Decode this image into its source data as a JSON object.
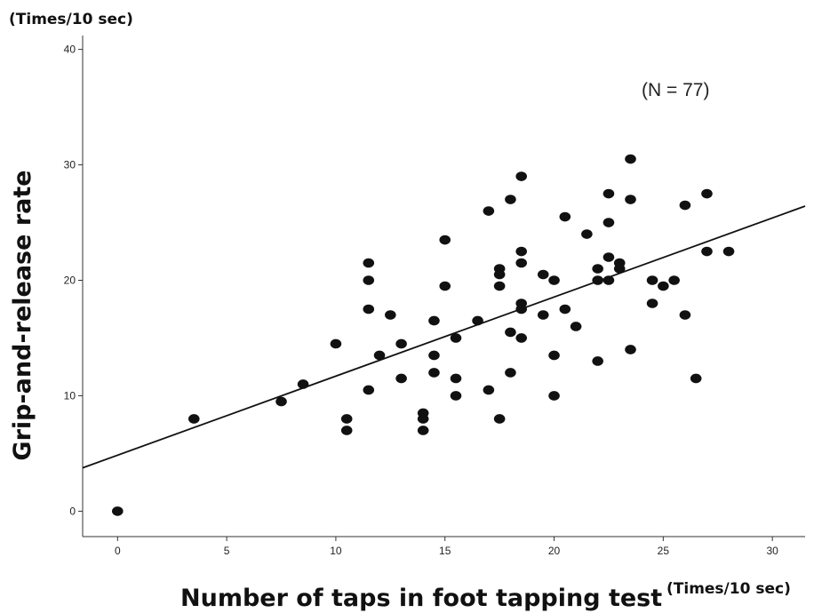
{
  "chart_data": {
    "type": "scatter",
    "xlabel": "Number of taps in foot tapping test",
    "ylabel": "Grip-and-release rate",
    "x_unit": "(Times/10 sec)",
    "y_unit": "(Times/10 sec)",
    "annotation": "(N = 77)",
    "xlim": [
      -1.6,
      31.5
    ],
    "ylim": [
      -2.2,
      41.2
    ],
    "xticks": [
      0,
      5,
      10,
      15,
      20,
      25,
      30
    ],
    "yticks": [
      0,
      10,
      20,
      30,
      40
    ],
    "grid": false,
    "fit_line": {
      "intercept": 4.85,
      "slope": 0.685
    },
    "points": [
      [
        0,
        0
      ],
      [
        3.5,
        8
      ],
      [
        7.5,
        9.5
      ],
      [
        8.5,
        11
      ],
      [
        10,
        14.5
      ],
      [
        10.5,
        8
      ],
      [
        10.5,
        7
      ],
      [
        11.5,
        21.5
      ],
      [
        11.5,
        20
      ],
      [
        11.5,
        17.5
      ],
      [
        11.5,
        10.5
      ],
      [
        12,
        13.5
      ],
      [
        12.5,
        17
      ],
      [
        13,
        14.5
      ],
      [
        13,
        11.5
      ],
      [
        14,
        8.5
      ],
      [
        14,
        8
      ],
      [
        14,
        7
      ],
      [
        14.5,
        16.5
      ],
      [
        14.5,
        13.5
      ],
      [
        14.5,
        12
      ],
      [
        15,
        23.5
      ],
      [
        15,
        19.5
      ],
      [
        15.5,
        15
      ],
      [
        15.5,
        11.5
      ],
      [
        15.5,
        10
      ],
      [
        16.5,
        16.5
      ],
      [
        17,
        26
      ],
      [
        17,
        10.5
      ],
      [
        17.5,
        21
      ],
      [
        17.5,
        20.5
      ],
      [
        17.5,
        19.5
      ],
      [
        17.5,
        8
      ],
      [
        18,
        27
      ],
      [
        18,
        15.5
      ],
      [
        18,
        12
      ],
      [
        18.5,
        29
      ],
      [
        18.5,
        22.5
      ],
      [
        18.5,
        21.5
      ],
      [
        18.5,
        18
      ],
      [
        18.5,
        17.5
      ],
      [
        18.5,
        15
      ],
      [
        19.5,
        20.5
      ],
      [
        19.5,
        17
      ],
      [
        20,
        20
      ],
      [
        20,
        13.5
      ],
      [
        20,
        10
      ],
      [
        20.5,
        25.5
      ],
      [
        20.5,
        17.5
      ],
      [
        21,
        16
      ],
      [
        21.5,
        24
      ],
      [
        22,
        21
      ],
      [
        22,
        20
      ],
      [
        22,
        13
      ],
      [
        22.5,
        27.5
      ],
      [
        22.5,
        25
      ],
      [
        22.5,
        22
      ],
      [
        22.5,
        20
      ],
      [
        23,
        21.5
      ],
      [
        23,
        21
      ],
      [
        23.5,
        30.5
      ],
      [
        23.5,
        27
      ],
      [
        23.5,
        14
      ],
      [
        24.5,
        20
      ],
      [
        24.5,
        18
      ],
      [
        25,
        19.5
      ],
      [
        25.5,
        20
      ],
      [
        26,
        26.5
      ],
      [
        26,
        17
      ],
      [
        26.5,
        11.5
      ],
      [
        27,
        27.5
      ],
      [
        27,
        22.5
      ],
      [
        28,
        22.5
      ]
    ]
  }
}
